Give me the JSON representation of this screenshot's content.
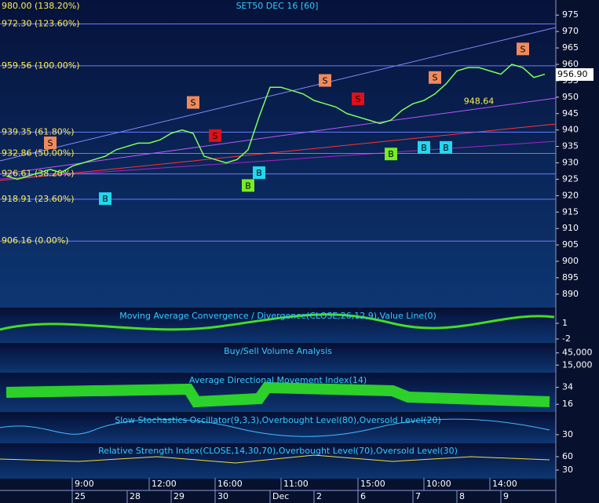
{
  "title": "SET50 DEC 16  [60]",
  "chart_data": {
    "type": "line",
    "color": "#7CFF5A",
    "values": [
      926,
      925,
      926,
      927,
      928,
      927,
      929,
      930,
      931,
      932,
      934,
      935,
      936,
      936,
      937,
      939,
      940,
      939,
      932,
      931,
      930,
      931,
      934,
      944,
      953,
      953,
      952,
      951,
      949,
      948,
      947,
      945,
      944,
      943,
      942,
      943,
      946,
      948,
      949,
      951,
      954,
      958,
      959,
      959,
      958,
      957,
      960,
      959,
      956,
      957
    ],
    "ylim": [
      885.9,
      979.6
    ],
    "yticks": [
      975,
      970,
      965,
      960,
      955,
      950,
      945,
      940,
      935,
      930,
      925,
      920,
      915,
      910,
      905,
      900,
      895,
      890
    ],
    "levels": [
      {
        "value": 980.0,
        "label": "980.00 (138.20%)"
      },
      {
        "value": 972.3,
        "label": "972.30 (123.60%)"
      },
      {
        "value": 959.56,
        "label": "959.56 (100.00%)"
      },
      {
        "value": 939.35,
        "label": "939.35 (61.80%)"
      },
      {
        "value": 932.86,
        "label": "932.86 (50.00%)"
      },
      {
        "value": 926.61,
        "label": "926.61 (38.20%)"
      },
      {
        "value": 918.91,
        "label": "918.91 (23.60%)"
      },
      {
        "value": 906.16,
        "label": "906.16 (0.00%)"
      }
    ],
    "last_price": {
      "value": 956.9,
      "label": "956.90"
    },
    "annotation": {
      "value": 948.64,
      "label": "948.64",
      "x": 43
    },
    "signals": [
      {
        "label": "S",
        "x": 4,
        "value": 936.1,
        "color": "#F08A5D"
      },
      {
        "label": "B",
        "x": 9,
        "value": 919.1,
        "color": "#22D8F0"
      },
      {
        "label": "S",
        "x": 17,
        "value": 948.4,
        "color": "#F08A5D"
      },
      {
        "label": "S",
        "x": 19,
        "value": 938.3,
        "color": "#E0101A"
      },
      {
        "label": "B",
        "x": 22,
        "value": 923.1,
        "color": "#77EE22"
      },
      {
        "label": "B",
        "x": 23,
        "value": 927.0,
        "color": "#22D8F0"
      },
      {
        "label": "S",
        "x": 29,
        "value": 955.1,
        "color": "#F08A5D"
      },
      {
        "label": "S",
        "x": 32,
        "value": 949.5,
        "color": "#E0101A"
      },
      {
        "label": "B",
        "x": 35,
        "value": 932.7,
        "color": "#77EE22"
      },
      {
        "label": "B",
        "x": 38,
        "value": 934.7,
        "color": "#22D8F0"
      },
      {
        "label": "S",
        "x": 39,
        "value": 956.0,
        "color": "#F08A5D"
      },
      {
        "label": "B",
        "x": 40,
        "value": 934.7,
        "color": "#22D8F0"
      },
      {
        "label": "S",
        "x": 47,
        "value": 964.7,
        "color": "#F08A5D"
      }
    ]
  },
  "panels": [
    {
      "title": "Moving Average Convergence / Divergence(CLOSE,26,12,9),Value Line(0)",
      "ylim": [
        -2.75,
        3.55
      ],
      "ticks": [
        1,
        -2
      ]
    },
    {
      "title": "Buy/Sell Volume Analysis",
      "ylim": [
        -3750,
        63750
      ],
      "ticks": [
        {
          "value": 45000,
          "label": "45,000"
        },
        {
          "value": 15000,
          "label": "15,000"
        }
      ]
    },
    {
      "title": "Average Directional Movement Index(14)",
      "ylim": [
        7.8,
        47.9
      ],
      "ticks": [
        34,
        16
      ]
    },
    {
      "title": "Slow Stochastics Oscillator(9,3,3),Overbought Level(80),Oversold Level(20)",
      "ylim": [
        0,
        100
      ],
      "ticks": [
        30
      ]
    },
    {
      "title": "Relative Strength Index(CLOSE,14,30,70),Overbought Level(70),Oversold Level(30)",
      "ylim": [
        10.6,
        86.5
      ],
      "ticks": [
        60,
        30
      ]
    }
  ],
  "time_axis": {
    "times": [
      {
        "x": 6,
        "label": "9:00"
      },
      {
        "x": 13,
        "label": "12:00"
      },
      {
        "x": 19,
        "label": "16:00"
      },
      {
        "x": 25,
        "label": "11:00"
      },
      {
        "x": 32,
        "label": "15:00"
      },
      {
        "x": 38,
        "label": "10:00"
      },
      {
        "x": 44,
        "label": "14:00"
      }
    ],
    "dates": [
      {
        "x": 6,
        "label": "25"
      },
      {
        "x": 11,
        "label": "28"
      },
      {
        "x": 15,
        "label": "29"
      },
      {
        "x": 19,
        "label": "30"
      },
      {
        "x": 24,
        "label": "Dec"
      },
      {
        "x": 28,
        "label": "2"
      },
      {
        "x": 32,
        "label": "6"
      },
      {
        "x": 37,
        "label": "7"
      },
      {
        "x": 41,
        "label": "8"
      },
      {
        "x": 45,
        "label": "9"
      }
    ]
  }
}
